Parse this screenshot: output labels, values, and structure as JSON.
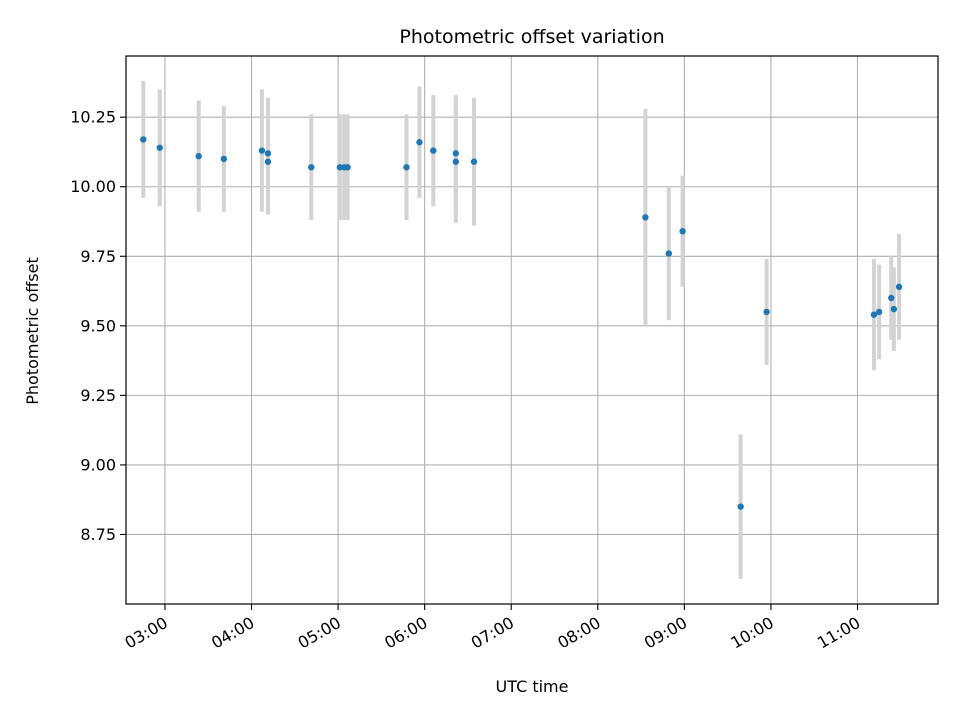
{
  "chart_data": {
    "type": "scatter",
    "title": "Photometric offset variation",
    "xlabel": "UTC time",
    "ylabel": "Photometric offset",
    "x_unit": "hours",
    "xlim": [
      2.55,
      11.93
    ],
    "ylim": [
      8.5,
      10.47
    ],
    "grid": true,
    "x_ticks": [
      {
        "value": 3,
        "label": "03:00"
      },
      {
        "value": 4,
        "label": "04:00"
      },
      {
        "value": 5,
        "label": "05:00"
      },
      {
        "value": 6,
        "label": "06:00"
      },
      {
        "value": 7,
        "label": "07:00"
      },
      {
        "value": 8,
        "label": "08:00"
      },
      {
        "value": 9,
        "label": "09:00"
      },
      {
        "value": 10,
        "label": "10:00"
      },
      {
        "value": 11,
        "label": "11:00"
      }
    ],
    "y_ticks": [
      {
        "value": 8.75,
        "label": "8.75"
      },
      {
        "value": 9.0,
        "label": "9.00"
      },
      {
        "value": 9.25,
        "label": "9.25"
      },
      {
        "value": 9.5,
        "label": "9.50"
      },
      {
        "value": 9.75,
        "label": "9.75"
      },
      {
        "value": 10.0,
        "label": "10.00"
      },
      {
        "value": 10.25,
        "label": "10.25"
      }
    ],
    "point_color": "#1f77b4",
    "errorbar_color": "#d3d3d3",
    "points": [
      {
        "x": 2.75,
        "y": 10.17,
        "err": 0.21
      },
      {
        "x": 2.94,
        "y": 10.14,
        "err": 0.21
      },
      {
        "x": 3.39,
        "y": 10.11,
        "err": 0.2
      },
      {
        "x": 3.68,
        "y": 10.1,
        "err": 0.19
      },
      {
        "x": 4.12,
        "y": 10.13,
        "err": 0.22
      },
      {
        "x": 4.19,
        "y": 10.12,
        "err": 0.2
      },
      {
        "x": 4.19,
        "y": 10.09,
        "err": 0.19
      },
      {
        "x": 4.69,
        "y": 10.07,
        "err": 0.19
      },
      {
        "x": 5.02,
        "y": 10.07,
        "err": 0.19
      },
      {
        "x": 5.07,
        "y": 10.07,
        "err": 0.19
      },
      {
        "x": 5.11,
        "y": 10.07,
        "err": 0.19
      },
      {
        "x": 5.79,
        "y": 10.07,
        "err": 0.19
      },
      {
        "x": 5.94,
        "y": 10.16,
        "err": 0.2
      },
      {
        "x": 6.1,
        "y": 10.13,
        "err": 0.2
      },
      {
        "x": 6.36,
        "y": 10.12,
        "err": 0.21
      },
      {
        "x": 6.36,
        "y": 10.09,
        "err": 0.22
      },
      {
        "x": 6.57,
        "y": 10.09,
        "err": 0.23
      },
      {
        "x": 8.55,
        "y": 9.89,
        "err": 0.39
      },
      {
        "x": 8.82,
        "y": 9.76,
        "err": 0.24
      },
      {
        "x": 8.98,
        "y": 9.84,
        "err": 0.2
      },
      {
        "x": 9.65,
        "y": 8.85,
        "err": 0.26
      },
      {
        "x": 9.95,
        "y": 9.55,
        "err": 0.19
      },
      {
        "x": 11.19,
        "y": 9.54,
        "err": 0.2
      },
      {
        "x": 11.25,
        "y": 9.55,
        "err": 0.17
      },
      {
        "x": 11.39,
        "y": 9.6,
        "err": 0.15
      },
      {
        "x": 11.42,
        "y": 9.56,
        "err": 0.15
      },
      {
        "x": 11.48,
        "y": 9.64,
        "err": 0.19
      }
    ]
  }
}
